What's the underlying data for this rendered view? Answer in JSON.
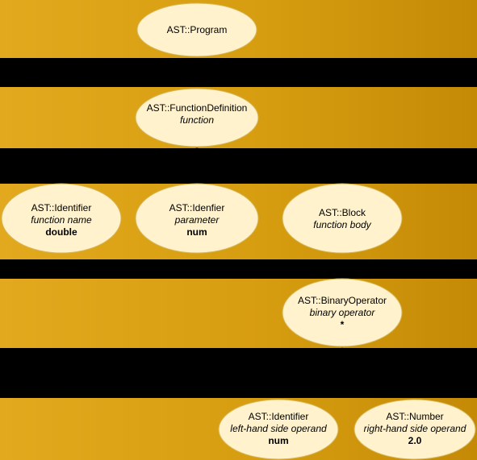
{
  "nodes": {
    "program": {
      "type": "AST::Program"
    },
    "function_definition": {
      "type": "AST::FunctionDefinition",
      "role": "function"
    },
    "identifier_name": {
      "type": "AST::Identifier",
      "role": "function name",
      "value": "double"
    },
    "identifier_param": {
      "type": "AST::Idenfier",
      "role": "parameter",
      "value": "num"
    },
    "block": {
      "type": "AST::Block",
      "role": "function body"
    },
    "binary_operator": {
      "type": "AST::BinaryOperator",
      "role": "binary operator",
      "value": "*"
    },
    "identifier_lhs": {
      "type": "AST::Identifier",
      "role": "left-hand side operand",
      "value": "num"
    },
    "number_rhs": {
      "type": "AST::Number",
      "role": "right-hand side operand",
      "value": "2.0"
    }
  },
  "colors": {
    "node_fill": "#fff2cc",
    "node_stroke": "#d6b656",
    "band": "#e0a820",
    "background": "#000000"
  }
}
